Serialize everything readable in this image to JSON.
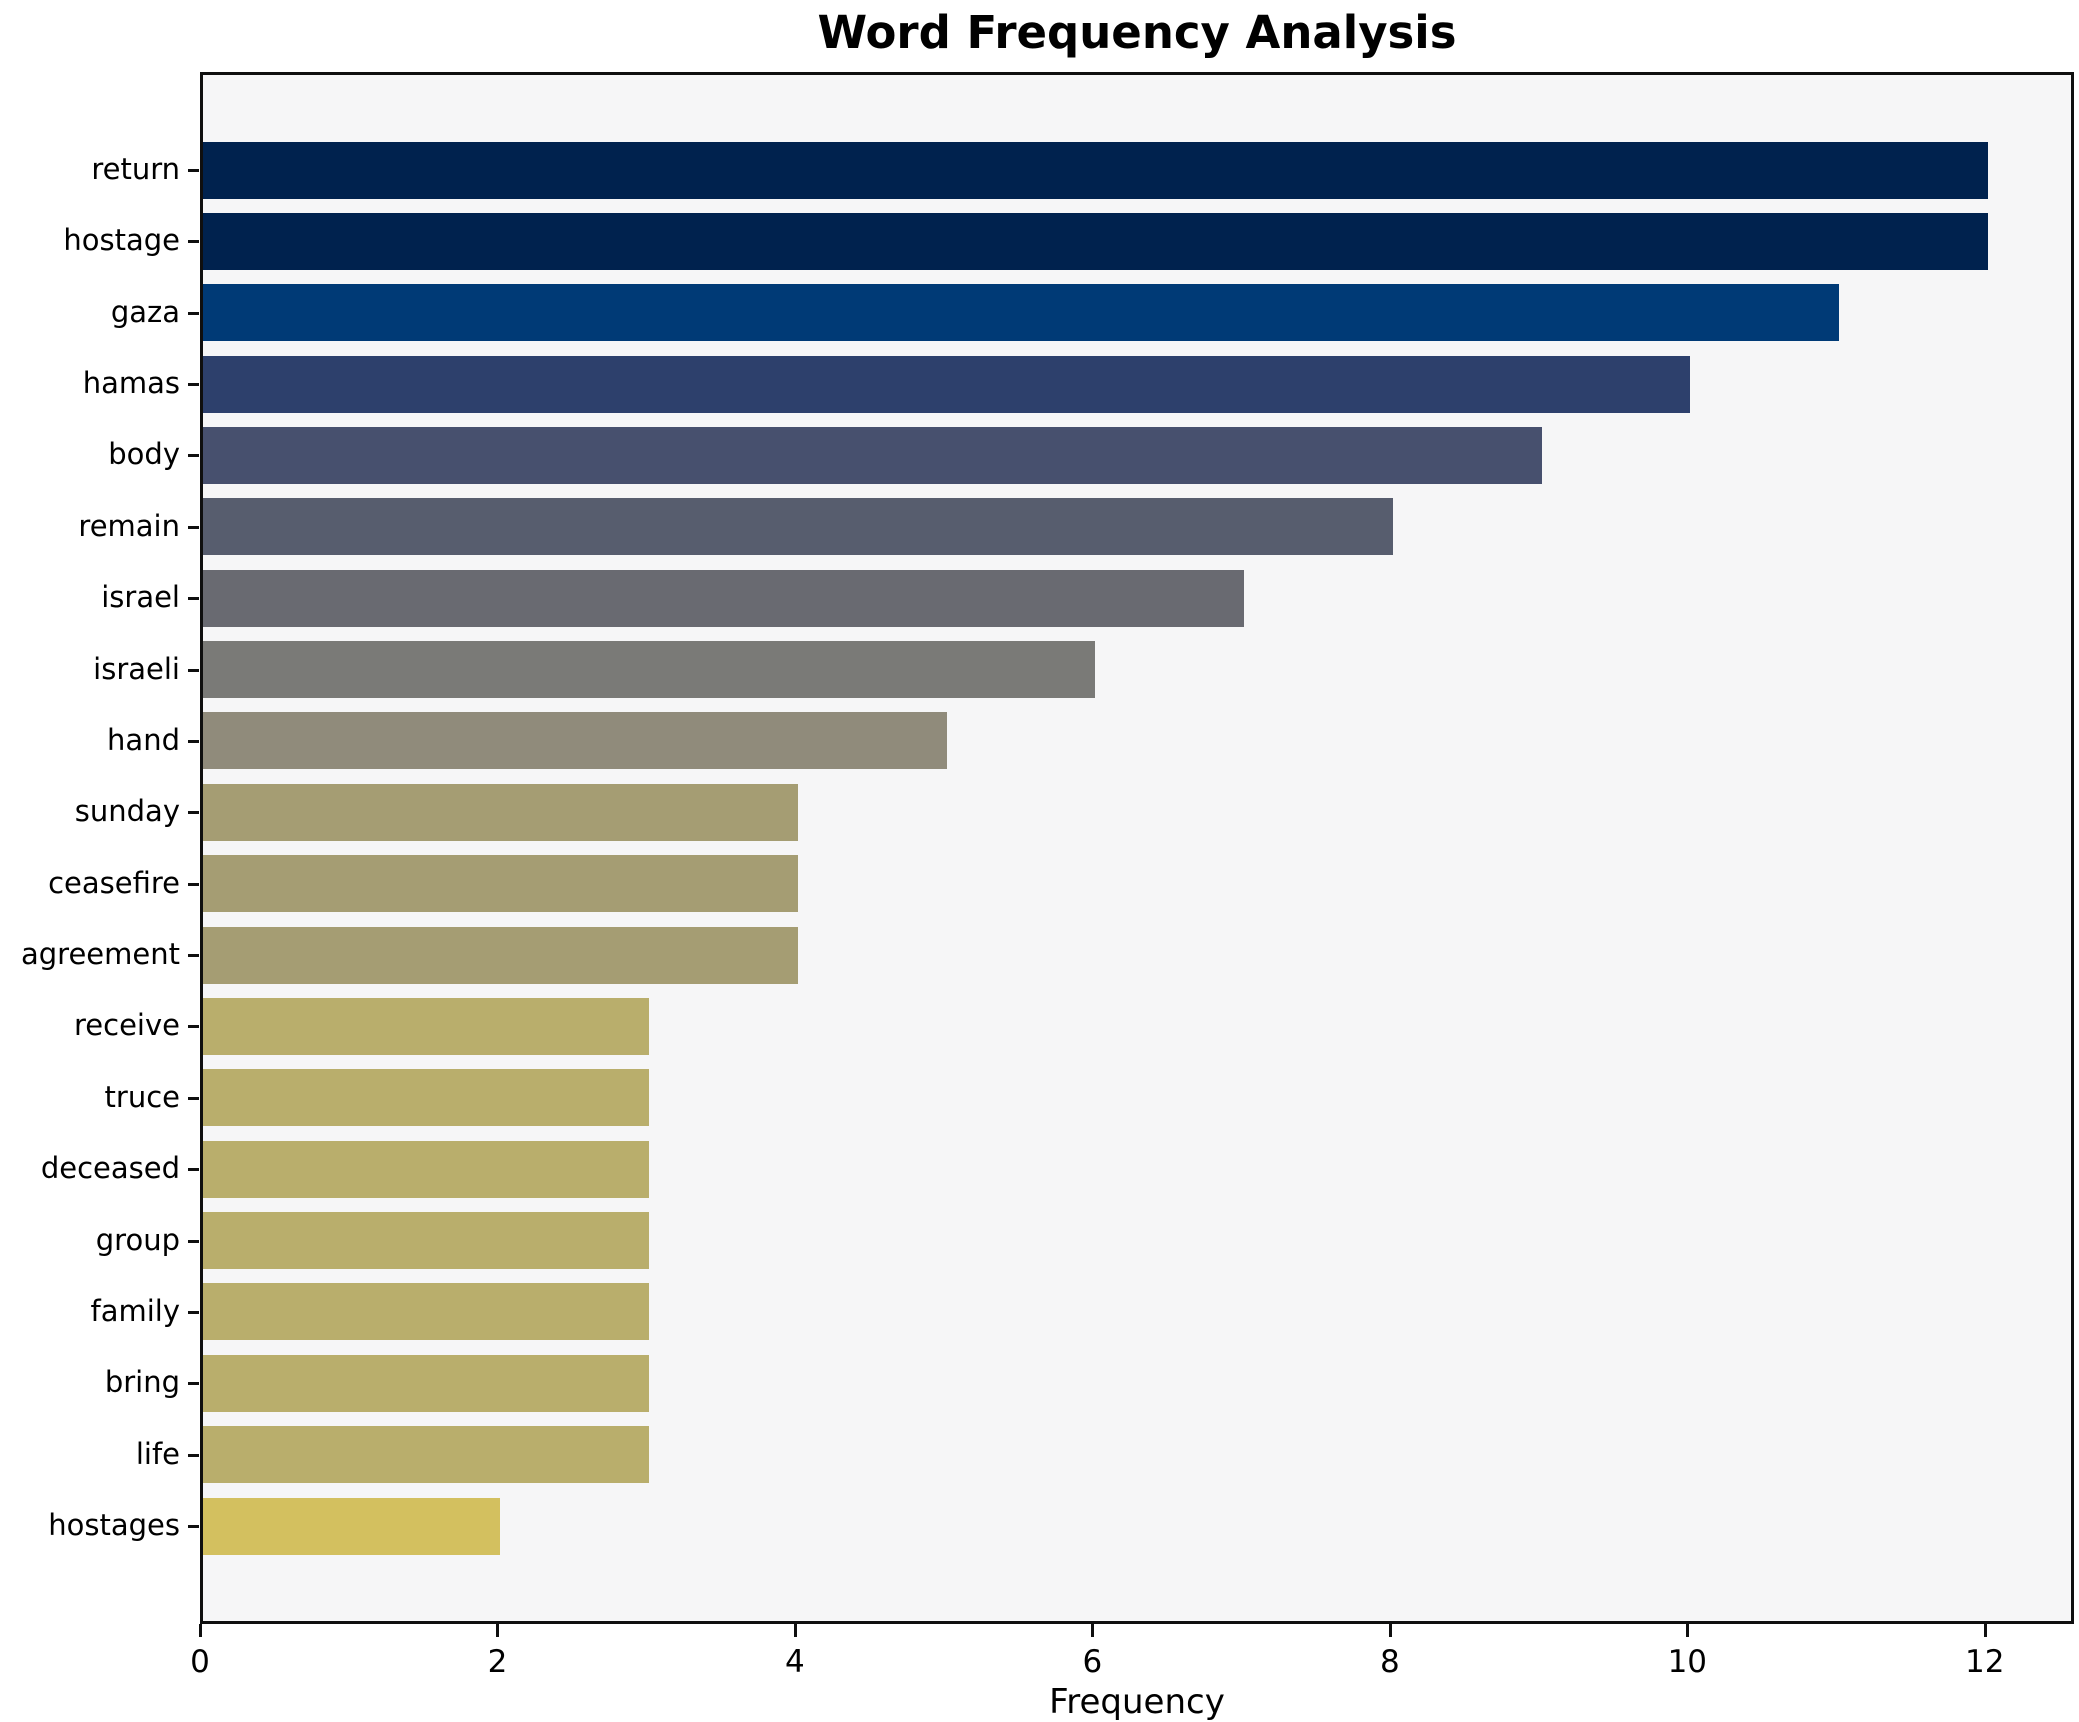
{
  "figure": {
    "title": "Word Frequency Analysis",
    "xlabel": "Frequency"
  },
  "chart_data": {
    "type": "bar",
    "orientation": "horizontal",
    "title": "Word Frequency Analysis",
    "xlabel": "Frequency",
    "categories": [
      "return",
      "hostage",
      "gaza",
      "hamas",
      "body",
      "remain",
      "israel",
      "israeli",
      "hand",
      "sunday",
      "ceasefire",
      "agreement",
      "receive",
      "truce",
      "deceased",
      "group",
      "family",
      "bring",
      "life",
      "hostages"
    ],
    "values": [
      12,
      12,
      11,
      10,
      9,
      8,
      7,
      6,
      5,
      4,
      4,
      4,
      3,
      3,
      3,
      3,
      3,
      3,
      3,
      2
    ],
    "bar_colors": [
      "#00224e",
      "#00224e",
      "#003a76",
      "#2d406c",
      "#47506e",
      "#575d6e",
      "#696a71",
      "#7a7a77",
      "#908b7b",
      "#a59d73",
      "#a59d73",
      "#a59d73",
      "#b9ae6c",
      "#b9ae6c",
      "#b9ae6c",
      "#b9ae6c",
      "#b9ae6c",
      "#b9ae6c",
      "#b9ae6c",
      "#d3c05f"
    ],
    "xlim": [
      0,
      12.6
    ],
    "xticks": [
      0,
      2,
      4,
      6,
      8,
      10,
      12
    ],
    "grid": false,
    "legend_position": "none",
    "plot_bg": "#f6f6f7",
    "fig_bg": "#ffffff",
    "spine_color": "#0f0f0f"
  }
}
